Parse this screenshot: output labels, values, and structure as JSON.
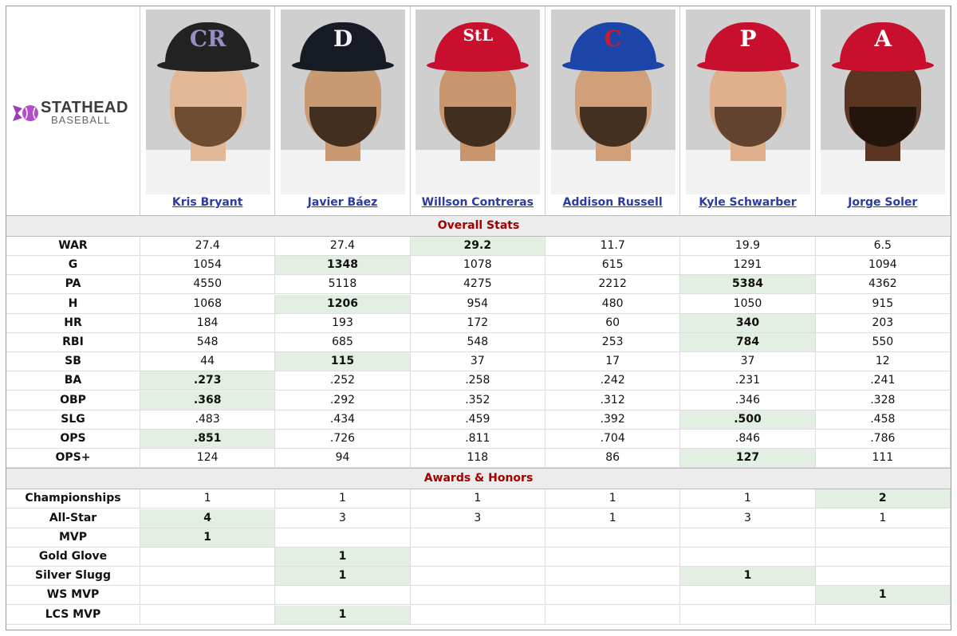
{
  "logo": {
    "line1": "STATHEAD",
    "line2": "BASEBALL"
  },
  "players": [
    {
      "name": "Kris Bryant",
      "cap_letter": "CR",
      "cap_color": "#222222",
      "letter_color": "#9a8cc0"
    },
    {
      "name": "Javier Báez",
      "cap_letter": "D",
      "cap_color": "#151a24",
      "letter_color": "#f0f0f0"
    },
    {
      "name": "Willson Contreras",
      "cap_letter": "StL",
      "cap_color": "#c8102e",
      "letter_color": "#ffffff"
    },
    {
      "name": "Addison Russell",
      "cap_letter": "C",
      "cap_color": "#1b45a8",
      "letter_color": "#cc1b2b"
    },
    {
      "name": "Kyle Schwarber",
      "cap_letter": "P",
      "cap_color": "#c8102e",
      "letter_color": "#ffffff"
    },
    {
      "name": "Jorge Soler",
      "cap_letter": "A",
      "cap_color": "#c8102e",
      "letter_color": "#ffffff"
    }
  ],
  "sections": {
    "overall": "Overall Stats",
    "awards": "Awards & Honors"
  },
  "overall_rows": [
    {
      "label": "WAR",
      "values": [
        "27.4",
        "27.4",
        "29.2",
        "11.7",
        "19.9",
        "6.5"
      ],
      "best": [
        2
      ]
    },
    {
      "label": "G",
      "values": [
        "1054",
        "1348",
        "1078",
        "615",
        "1291",
        "1094"
      ],
      "best": [
        1
      ]
    },
    {
      "label": "PA",
      "values": [
        "4550",
        "5118",
        "4275",
        "2212",
        "5384",
        "4362"
      ],
      "best": [
        4
      ]
    },
    {
      "label": "H",
      "values": [
        "1068",
        "1206",
        "954",
        "480",
        "1050",
        "915"
      ],
      "best": [
        1
      ]
    },
    {
      "label": "HR",
      "values": [
        "184",
        "193",
        "172",
        "60",
        "340",
        "203"
      ],
      "best": [
        4
      ]
    },
    {
      "label": "RBI",
      "values": [
        "548",
        "685",
        "548",
        "253",
        "784",
        "550"
      ],
      "best": [
        4
      ]
    },
    {
      "label": "SB",
      "values": [
        "44",
        "115",
        "37",
        "17",
        "37",
        "12"
      ],
      "best": [
        1
      ]
    },
    {
      "label": "BA",
      "values": [
        ".273",
        ".252",
        ".258",
        ".242",
        ".231",
        ".241"
      ],
      "best": [
        0
      ]
    },
    {
      "label": "OBP",
      "values": [
        ".368",
        ".292",
        ".352",
        ".312",
        ".346",
        ".328"
      ],
      "best": [
        0
      ]
    },
    {
      "label": "SLG",
      "values": [
        ".483",
        ".434",
        ".459",
        ".392",
        ".500",
        ".458"
      ],
      "best": [
        4
      ]
    },
    {
      "label": "OPS",
      "values": [
        ".851",
        ".726",
        ".811",
        ".704",
        ".846",
        ".786"
      ],
      "best": [
        0
      ]
    },
    {
      "label": "OPS+",
      "values": [
        "124",
        "94",
        "118",
        "86",
        "127",
        "111"
      ],
      "best": [
        4
      ]
    }
  ],
  "award_rows": [
    {
      "label": "Championships",
      "values": [
        "1",
        "1",
        "1",
        "1",
        "1",
        "2"
      ],
      "best": [
        5
      ]
    },
    {
      "label": "All-Star",
      "values": [
        "4",
        "3",
        "3",
        "1",
        "3",
        "1"
      ],
      "best": [
        0
      ]
    },
    {
      "label": "MVP",
      "values": [
        "1",
        "",
        "",
        "",
        "",
        ""
      ],
      "best": [
        0
      ]
    },
    {
      "label": "Gold Glove",
      "values": [
        "",
        "1",
        "",
        "",
        "",
        ""
      ],
      "best": [
        1
      ]
    },
    {
      "label": "Silver Slugg",
      "values": [
        "",
        "1",
        "",
        "",
        "1",
        ""
      ],
      "best": [
        1,
        4
      ]
    },
    {
      "label": "WS MVP",
      "values": [
        "",
        "",
        "",
        "",
        "",
        "1"
      ],
      "best": [
        5
      ]
    },
    {
      "label": "LCS MVP",
      "values": [
        "",
        "1",
        "",
        "",
        "",
        ""
      ],
      "best": [
        1
      ]
    }
  ],
  "colors": {
    "highlight": "#e2efe2",
    "section_title": "#a00000",
    "link": "#2a3aa8"
  }
}
